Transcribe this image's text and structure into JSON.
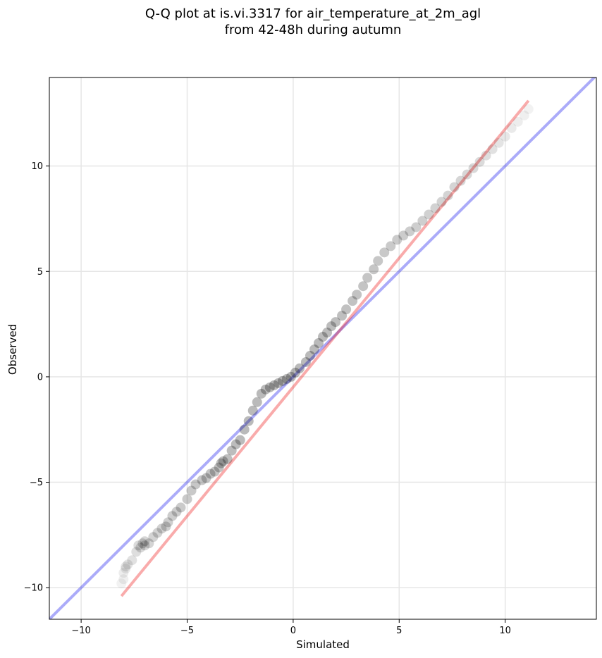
{
  "chart_data": {
    "type": "scatter",
    "title_lines": [
      "Q-Q plot at is.vi.3317 for air_temperature_at_2m_agl",
      "from 42-48h during autumn"
    ],
    "xlabel": "Simulated",
    "ylabel": "Observed",
    "xlim": [
      -11.5,
      14.3
    ],
    "ylim": [
      -11.5,
      14.2
    ],
    "xticks": [
      -10,
      -5,
      0,
      5,
      10
    ],
    "yticks": [
      -10,
      -5,
      0,
      5,
      10
    ],
    "xtick_labels": [
      "−10",
      "−5",
      "0",
      "5",
      "10"
    ],
    "ytick_labels": [
      "−10",
      "−5",
      "0",
      "5",
      "10"
    ],
    "grid": true,
    "reference_line": {
      "description": "1:1 line",
      "color": "#0000ee",
      "slope": 1,
      "intercept": 0
    },
    "fit_line": {
      "color": "#ee0000",
      "x": [
        -8.1,
        11.1
      ],
      "y": [
        -10.4,
        13.1
      ]
    },
    "colors": {
      "points": "#000000",
      "reference": "#0000ee",
      "fit": "#ee0000",
      "grid": "#e6e6e6",
      "axes": "#000000"
    },
    "quantiles": {
      "x": [
        -8.1,
        -8.0,
        -8.0,
        -7.9,
        -7.9,
        -7.8,
        -7.6,
        -7.4,
        -7.3,
        -7.2,
        -7.1,
        -7.0,
        -7.0,
        -6.8,
        -6.6,
        -6.4,
        -6.2,
        -6.0,
        -5.9,
        -5.7,
        -5.5,
        -5.3,
        -5.0,
        -4.8,
        -4.6,
        -4.3,
        -4.1,
        -3.9,
        -3.7,
        -3.5,
        -3.4,
        -3.3,
        -3.1,
        -2.9,
        -2.7,
        -2.5,
        -2.3,
        -2.1,
        -1.9,
        -1.7,
        -1.5,
        -1.3,
        -1.1,
        -0.9,
        -0.7,
        -0.5,
        -0.3,
        -0.1,
        0.1,
        0.3,
        0.6,
        0.8,
        1.0,
        1.2,
        1.4,
        1.6,
        1.8,
        2.0,
        2.3,
        2.5,
        2.8,
        3.0,
        3.3,
        3.5,
        3.8,
        4.0,
        4.3,
        4.6,
        4.9,
        5.2,
        5.5,
        5.8,
        6.1,
        6.4,
        6.7,
        7.0,
        7.3,
        7.6,
        7.9,
        8.2,
        8.5,
        8.8,
        9.1,
        9.4,
        9.7,
        10.0,
        10.3,
        10.6,
        10.9,
        11.1
      ],
      "y": [
        -9.8,
        -9.6,
        -9.3,
        -9.1,
        -9.0,
        -8.9,
        -8.7,
        -8.3,
        -8.0,
        -8.1,
        -7.9,
        -7.8,
        -8.0,
        -7.9,
        -7.6,
        -7.4,
        -7.2,
        -7.1,
        -6.9,
        -6.6,
        -6.4,
        -6.2,
        -5.8,
        -5.4,
        -5.1,
        -4.9,
        -4.8,
        -4.6,
        -4.5,
        -4.3,
        -4.1,
        -4.0,
        -3.9,
        -3.5,
        -3.2,
        -3.0,
        -2.5,
        -2.1,
        -1.6,
        -1.2,
        -0.8,
        -0.6,
        -0.5,
        -0.4,
        -0.3,
        -0.2,
        -0.1,
        0.0,
        0.2,
        0.4,
        0.7,
        1.0,
        1.3,
        1.6,
        1.9,
        2.1,
        2.4,
        2.6,
        2.9,
        3.2,
        3.6,
        3.9,
        4.3,
        4.7,
        5.1,
        5.5,
        5.9,
        6.2,
        6.5,
        6.7,
        6.9,
        7.1,
        7.4,
        7.7,
        8.0,
        8.3,
        8.6,
        9.0,
        9.3,
        9.6,
        9.9,
        10.2,
        10.5,
        10.8,
        11.1,
        11.4,
        11.8,
        12.1,
        12.4,
        12.7
      ]
    }
  }
}
